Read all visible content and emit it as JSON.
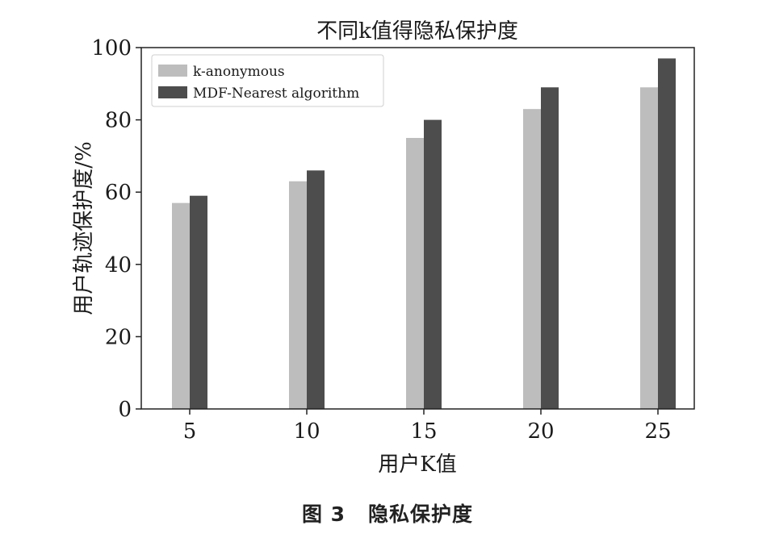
{
  "chart_data": {
    "type": "bar",
    "title": "不同k值得隐私保护度",
    "xlabel": "用户K值",
    "ylabel": "用户轨迹保护度/%",
    "categories": [
      "5",
      "10",
      "15",
      "20",
      "25"
    ],
    "series": [
      {
        "name": "k-anonymous",
        "values": [
          57,
          63,
          75,
          83,
          89
        ],
        "color": "#bdbdbd"
      },
      {
        "name": "MDF-Nearest algorithm",
        "values": [
          59,
          66,
          80,
          89,
          97
        ],
        "color": "#4d4d4d"
      }
    ],
    "ylim": [
      0,
      100
    ],
    "yticks": [
      0,
      20,
      40,
      60,
      80,
      100
    ],
    "grid": false,
    "legend_position": "top-left"
  },
  "caption": {
    "figure_number": "图 3",
    "text": "隐私保护度"
  }
}
